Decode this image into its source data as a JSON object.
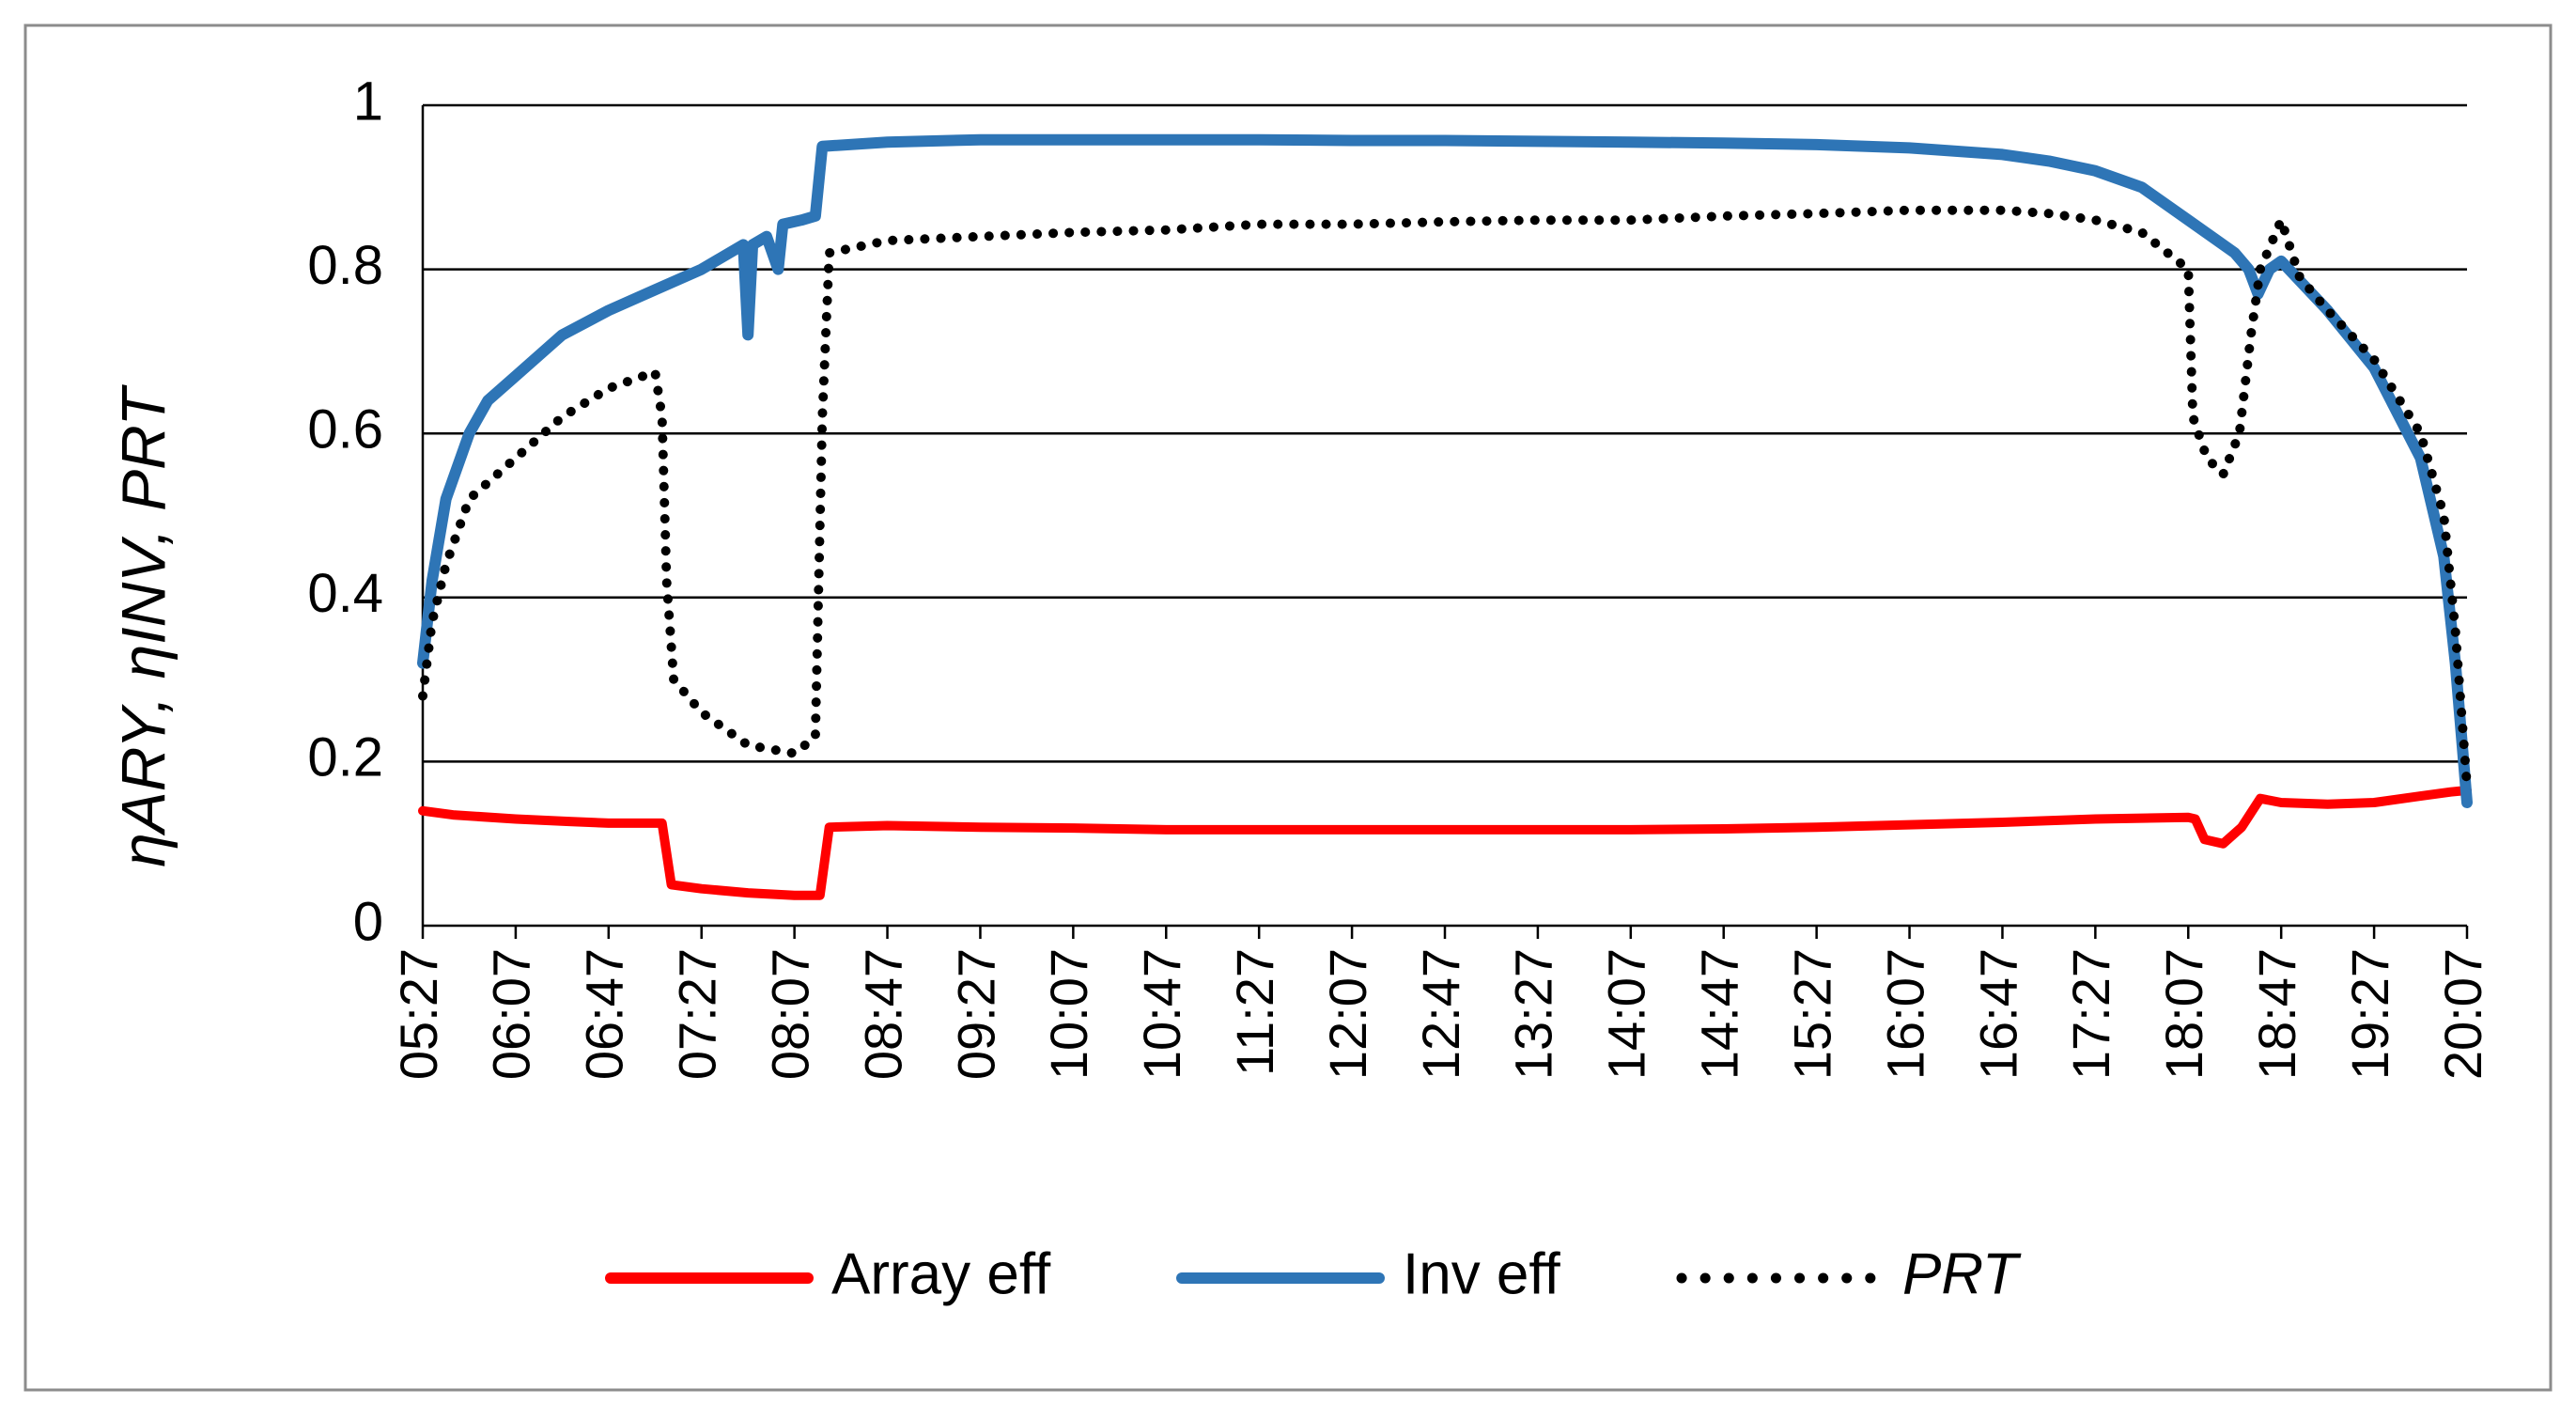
{
  "chart_data": {
    "type": "line",
    "x_ticks": [
      "05:27",
      "06:07",
      "06:47",
      "07:27",
      "08:07",
      "08:47",
      "09:27",
      "10:07",
      "10:47",
      "11:27",
      "12:07",
      "12:47",
      "13:27",
      "14:07",
      "14:47",
      "15:27",
      "16:07",
      "16:47",
      "17:27",
      "18:07",
      "18:47",
      "19:27",
      "20:07"
    ],
    "x_range": [
      "05:27",
      "20:07"
    ],
    "ylim": [
      0,
      1
    ],
    "y_ticks": [
      "0",
      "0.2",
      "0.4",
      "0.6",
      "0.8",
      "1"
    ],
    "ylabel": "ηARY, ηINV, PRT",
    "grid": "horizontal",
    "legend_position": "bottom",
    "series": [
      {
        "name": "Array eff",
        "color": "#ff0000",
        "style": "solid",
        "points": [
          [
            "05:27",
            0.14
          ],
          [
            "05:40",
            0.135
          ],
          [
            "06:07",
            0.13
          ],
          [
            "06:30",
            0.127
          ],
          [
            "06:47",
            0.125
          ],
          [
            "07:10",
            0.125
          ],
          [
            "07:14",
            0.05
          ],
          [
            "07:27",
            0.045
          ],
          [
            "07:47",
            0.04
          ],
          [
            "08:07",
            0.037
          ],
          [
            "08:18",
            0.037
          ],
          [
            "08:22",
            0.12
          ],
          [
            "08:47",
            0.122
          ],
          [
            "09:27",
            0.12
          ],
          [
            "10:07",
            0.119
          ],
          [
            "10:47",
            0.117
          ],
          [
            "11:27",
            0.117
          ],
          [
            "12:07",
            0.117
          ],
          [
            "12:47",
            0.117
          ],
          [
            "13:27",
            0.117
          ],
          [
            "14:07",
            0.117
          ],
          [
            "14:47",
            0.118
          ],
          [
            "15:27",
            0.12
          ],
          [
            "16:07",
            0.123
          ],
          [
            "16:47",
            0.126
          ],
          [
            "17:27",
            0.13
          ],
          [
            "18:07",
            0.132
          ],
          [
            "18:10",
            0.13
          ],
          [
            "18:14",
            0.105
          ],
          [
            "18:22",
            0.1
          ],
          [
            "18:30",
            0.12
          ],
          [
            "18:38",
            0.155
          ],
          [
            "18:47",
            0.15
          ],
          [
            "19:07",
            0.148
          ],
          [
            "19:27",
            0.15
          ],
          [
            "19:47",
            0.158
          ],
          [
            "20:00",
            0.163
          ],
          [
            "20:07",
            0.165
          ]
        ]
      },
      {
        "name": "Inv eff",
        "color": "#2e75b6",
        "style": "solid",
        "points": [
          [
            "05:27",
            0.32
          ],
          [
            "05:31",
            0.42
          ],
          [
            "05:37",
            0.52
          ],
          [
            "05:47",
            0.6
          ],
          [
            "05:55",
            0.64
          ],
          [
            "06:07",
            0.67
          ],
          [
            "06:27",
            0.72
          ],
          [
            "06:47",
            0.75
          ],
          [
            "07:07",
            0.775
          ],
          [
            "07:27",
            0.8
          ],
          [
            "07:45",
            0.83
          ],
          [
            "07:47",
            0.72
          ],
          [
            "07:49",
            0.83
          ],
          [
            "07:55",
            0.84
          ],
          [
            "08:00",
            0.8
          ],
          [
            "08:02",
            0.855
          ],
          [
            "08:10",
            0.86
          ],
          [
            "08:16",
            0.865
          ],
          [
            "08:19",
            0.95
          ],
          [
            "08:47",
            0.955
          ],
          [
            "09:27",
            0.958
          ],
          [
            "10:07",
            0.958
          ],
          [
            "10:47",
            0.958
          ],
          [
            "11:27",
            0.958
          ],
          [
            "12:07",
            0.957
          ],
          [
            "12:47",
            0.957
          ],
          [
            "13:27",
            0.956
          ],
          [
            "14:07",
            0.955
          ],
          [
            "14:47",
            0.954
          ],
          [
            "15:27",
            0.952
          ],
          [
            "16:07",
            0.948
          ],
          [
            "16:47",
            0.94
          ],
          [
            "17:07",
            0.932
          ],
          [
            "17:27",
            0.92
          ],
          [
            "17:47",
            0.9
          ],
          [
            "18:07",
            0.86
          ],
          [
            "18:27",
            0.82
          ],
          [
            "18:33",
            0.8
          ],
          [
            "18:37",
            0.77
          ],
          [
            "18:42",
            0.8
          ],
          [
            "18:47",
            0.81
          ],
          [
            "19:07",
            0.75
          ],
          [
            "19:27",
            0.68
          ],
          [
            "19:47",
            0.57
          ],
          [
            "19:57",
            0.45
          ],
          [
            "20:02",
            0.32
          ],
          [
            "20:07",
            0.15
          ]
        ]
      },
      {
        "name": "PRT",
        "color": "#000000",
        "style": "dotted",
        "points": [
          [
            "05:27",
            0.28
          ],
          [
            "05:31",
            0.37
          ],
          [
            "05:37",
            0.44
          ],
          [
            "05:47",
            0.52
          ],
          [
            "06:07",
            0.57
          ],
          [
            "06:27",
            0.62
          ],
          [
            "06:47",
            0.655
          ],
          [
            "07:07",
            0.675
          ],
          [
            "07:10",
            0.62
          ],
          [
            "07:12",
            0.42
          ],
          [
            "07:15",
            0.3
          ],
          [
            "07:27",
            0.26
          ],
          [
            "07:47",
            0.22
          ],
          [
            "08:07",
            0.21
          ],
          [
            "08:16",
            0.23
          ],
          [
            "08:19",
            0.62
          ],
          [
            "08:22",
            0.82
          ],
          [
            "08:47",
            0.835
          ],
          [
            "09:27",
            0.84
          ],
          [
            "10:07",
            0.845
          ],
          [
            "10:47",
            0.848
          ],
          [
            "11:27",
            0.855
          ],
          [
            "12:07",
            0.855
          ],
          [
            "12:47",
            0.858
          ],
          [
            "13:27",
            0.86
          ],
          [
            "14:07",
            0.86
          ],
          [
            "14:47",
            0.865
          ],
          [
            "15:27",
            0.868
          ],
          [
            "16:07",
            0.872
          ],
          [
            "16:47",
            0.872
          ],
          [
            "17:07",
            0.868
          ],
          [
            "17:27",
            0.86
          ],
          [
            "17:47",
            0.845
          ],
          [
            "18:07",
            0.8
          ],
          [
            "18:09",
            0.62
          ],
          [
            "18:15",
            0.57
          ],
          [
            "18:22",
            0.55
          ],
          [
            "18:29",
            0.6
          ],
          [
            "18:34",
            0.72
          ],
          [
            "18:38",
            0.8
          ],
          [
            "18:47",
            0.86
          ],
          [
            "18:55",
            0.79
          ],
          [
            "19:07",
            0.75
          ],
          [
            "19:27",
            0.69
          ],
          [
            "19:47",
            0.6
          ],
          [
            "19:57",
            0.5
          ],
          [
            "20:02",
            0.36
          ],
          [
            "20:07",
            0.17
          ]
        ]
      }
    ]
  }
}
